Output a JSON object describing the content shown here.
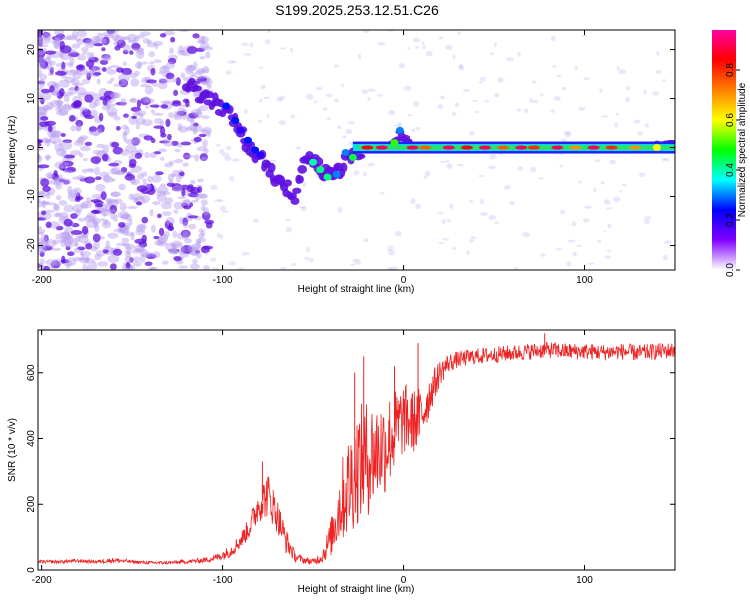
{
  "title": "S199.2025.253.12.51.C26",
  "colors": {
    "signal_line": "#ee2222",
    "axis": "#000000",
    "scatter_sparse": "#b59cf0",
    "scatter_dense": "#5f0fe0"
  },
  "chart_data": [
    {
      "type": "heatmap",
      "name": "spectrogram",
      "xlabel": "Height of straight line (km)",
      "ylabel": "Frequency (Hz)",
      "xlim": [
        -202,
        150
      ],
      "ylim": [
        -25,
        24
      ],
      "xticks": [
        -200,
        -100,
        0,
        100
      ],
      "xtick_labels": [
        "-200",
        "-100",
        "0",
        "100"
      ],
      "yticks": [
        -20,
        -10,
        0,
        10,
        20
      ],
      "ytick_labels": [
        "-20",
        "-10",
        "0",
        "10",
        "20"
      ],
      "colorbar": {
        "label": "Normalized spectral amplitude",
        "range": [
          0,
          0.96
        ],
        "ticks": [
          0,
          0.2,
          0.4,
          0.6,
          0.8
        ],
        "tick_labels": [
          "0.0",
          "0.2",
          "0.4",
          "0.6",
          "0.8"
        ],
        "stops": [
          "#ffffff",
          "#8000ff",
          "#0000ff",
          "#00ffff",
          "#00ff00",
          "#ffff00",
          "#ff8000",
          "#ff0000",
          "#ff00a0"
        ]
      },
      "ridge": [
        {
          "x": -120,
          "f": 13
        },
        {
          "x": -110,
          "f": 10
        },
        {
          "x": -100,
          "f": 8
        },
        {
          "x": -95,
          "f": 6
        },
        {
          "x": -90,
          "f": 3
        },
        {
          "x": -85,
          "f": 0
        },
        {
          "x": -80,
          "f": -2
        },
        {
          "x": -75,
          "f": -4
        },
        {
          "x": -70,
          "f": -6
        },
        {
          "x": -65,
          "f": -8
        },
        {
          "x": -60,
          "f": -10
        },
        {
          "x": -55,
          "f": -2
        },
        {
          "x": -50,
          "f": -3
        },
        {
          "x": -45,
          "f": -5
        },
        {
          "x": -40,
          "f": -6
        },
        {
          "x": -35,
          "f": -5
        },
        {
          "x": -30,
          "f": -1
        },
        {
          "x": -25,
          "f": -2
        },
        {
          "x": -20,
          "f": 0
        },
        {
          "x": -10,
          "f": 0
        },
        {
          "x": -5,
          "f": 1
        },
        {
          "x": -2,
          "f": 3
        },
        {
          "x": 2,
          "f": 1
        },
        {
          "x": 10,
          "f": 0
        },
        {
          "x": 40,
          "f": 0
        },
        {
          "x": 80,
          "f": 0
        },
        {
          "x": 120,
          "f": 0
        },
        {
          "x": 150,
          "f": 0.5
        }
      ],
      "hotspots": [
        {
          "x": -98,
          "f": 8.5,
          "amp": 0.25
        },
        {
          "x": -93,
          "f": 5.5,
          "amp": 0.25
        },
        {
          "x": -90,
          "f": 3.5,
          "amp": 0.2
        },
        {
          "x": -86,
          "f": 1.5,
          "amp": 0.25
        },
        {
          "x": -82,
          "f": -0.5,
          "amp": 0.25
        },
        {
          "x": -79,
          "f": -1.5,
          "amp": 0.2
        },
        {
          "x": -50,
          "f": -3,
          "amp": 0.4
        },
        {
          "x": -46,
          "f": -4.5,
          "amp": 0.42
        },
        {
          "x": -42,
          "f": -6,
          "amp": 0.42
        },
        {
          "x": -37,
          "f": -5.5,
          "amp": 0.3
        },
        {
          "x": -32,
          "f": -1,
          "amp": 0.3
        },
        {
          "x": -28,
          "f": -2,
          "amp": 0.45
        },
        {
          "x": -2,
          "f": 3.5,
          "amp": 0.3
        },
        {
          "x": -5,
          "f": 1,
          "amp": 0.5
        },
        {
          "x": -20,
          "f": 0,
          "amp": 0.85
        },
        {
          "x": -12,
          "f": 0,
          "amp": 0.9
        },
        {
          "x": 5,
          "f": 0,
          "amp": 0.9
        },
        {
          "x": 12,
          "f": 0,
          "amp": 0.75
        },
        {
          "x": 25,
          "f": 0,
          "amp": 0.9
        },
        {
          "x": 35,
          "f": 0,
          "amp": 0.85
        },
        {
          "x": 45,
          "f": 0,
          "amp": 0.9
        },
        {
          "x": 55,
          "f": 0,
          "amp": 0.75
        },
        {
          "x": 65,
          "f": 0,
          "amp": 0.9
        },
        {
          "x": 72,
          "f": 0,
          "amp": 0.8
        },
        {
          "x": 85,
          "f": 0,
          "amp": 0.9
        },
        {
          "x": 95,
          "f": 0,
          "amp": 0.7
        },
        {
          "x": 105,
          "f": 0,
          "amp": 0.9
        },
        {
          "x": 115,
          "f": 0,
          "amp": 0.8
        },
        {
          "x": 128,
          "f": 0,
          "amp": 0.7
        },
        {
          "x": 140,
          "f": 0,
          "amp": 0.6
        }
      ]
    },
    {
      "type": "line",
      "name": "snr",
      "xlabel": "Height of straight line (km)",
      "ylabel": "SNR (10 * v/v)",
      "xlim": [
        -202,
        150
      ],
      "ylim": [
        0,
        730
      ],
      "xticks": [
        -200,
        -100,
        0,
        100
      ],
      "xtick_labels": [
        "-200",
        "-100",
        "0",
        "100"
      ],
      "yticks": [
        0,
        200,
        400,
        600
      ],
      "ytick_labels": [
        "0",
        "200",
        "400",
        "600"
      ],
      "series": [
        {
          "name": "SNR",
          "color": "#ee2222",
          "x": [
            -202,
            -190,
            -180,
            -170,
            -160,
            -150,
            -140,
            -130,
            -120,
            -110,
            -105,
            -100,
            -95,
            -90,
            -85,
            -80,
            -75,
            -70,
            -65,
            -60,
            -55,
            -50,
            -45,
            -40,
            -35,
            -30,
            -25,
            -20,
            -15,
            -10,
            -5,
            0,
            5,
            10,
            15,
            20,
            25,
            30,
            40,
            50,
            60,
            70,
            80,
            90,
            100,
            110,
            120,
            130,
            140,
            150
          ],
          "y": [
            25,
            25,
            28,
            25,
            30,
            25,
            22,
            22,
            25,
            30,
            35,
            45,
            60,
            90,
            130,
            200,
            230,
            170,
            90,
            40,
            30,
            25,
            40,
            100,
            200,
            260,
            320,
            340,
            360,
            380,
            420,
            460,
            450,
            470,
            540,
            600,
            630,
            640,
            650,
            655,
            660,
            665,
            670,
            665,
            665,
            662,
            665,
            660,
            665,
            668
          ],
          "noise": [
            5,
            5,
            5,
            5,
            8,
            5,
            5,
            5,
            6,
            8,
            10,
            15,
            20,
            25,
            35,
            55,
            70,
            55,
            40,
            15,
            10,
            10,
            20,
            60,
            120,
            160,
            180,
            180,
            160,
            150,
            130,
            110,
            100,
            90,
            60,
            40,
            30,
            25,
            25,
            25,
            25,
            25,
            25,
            25,
            25,
            25,
            25,
            25,
            25,
            25
          ],
          "spikes": [
            {
              "x": -22,
              "y": 650
            },
            {
              "x": -27,
              "y": 600
            },
            {
              "x": -5,
              "y": 620
            },
            {
              "x": 8,
              "y": 690
            },
            {
              "x": 78,
              "y": 720
            },
            {
              "x": -78,
              "y": 330
            }
          ]
        }
      ]
    }
  ]
}
